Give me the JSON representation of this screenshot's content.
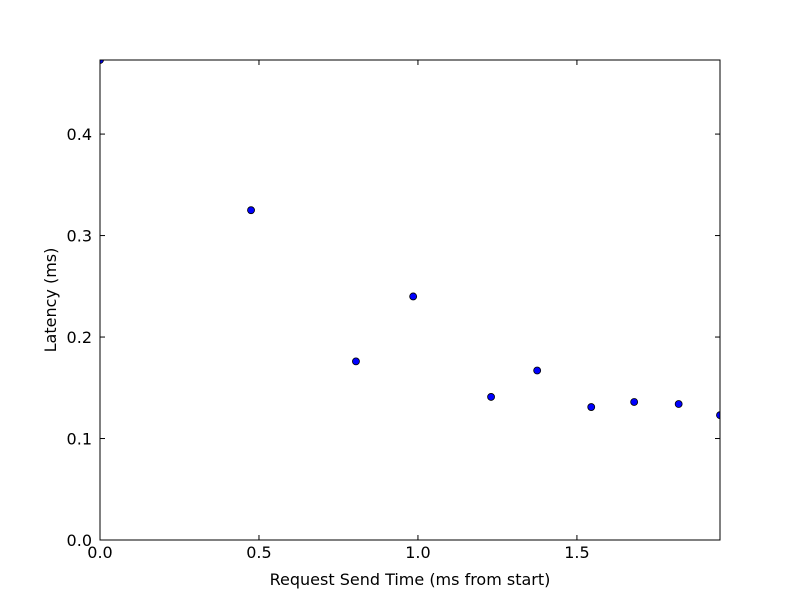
{
  "chart_data": {
    "type": "scatter",
    "title": "",
    "xlabel": "Request Send Time (ms from start)",
    "ylabel": "Latency (ms)",
    "xlim": [
      0.0,
      1.95
    ],
    "ylim": [
      0.0,
      0.473
    ],
    "xticks": [
      0.0,
      0.5,
      1.0,
      1.5
    ],
    "xtick_labels": [
      "0.0",
      "0.5",
      "1.0",
      "1.5"
    ],
    "yticks": [
      0.0,
      0.1,
      0.2,
      0.3,
      0.4
    ],
    "ytick_labels": [
      "0.0",
      "0.1",
      "0.2",
      "0.3",
      "0.4"
    ],
    "grid": false,
    "marker_color": "#0000ff",
    "series": [
      {
        "x": [
          0.0,
          0.475,
          0.805,
          0.985,
          1.23,
          1.375,
          1.545,
          1.68,
          1.82,
          1.95
        ],
        "y": [
          0.473,
          0.325,
          0.176,
          0.24,
          0.141,
          0.167,
          0.131,
          0.136,
          0.134,
          0.123
        ]
      }
    ]
  }
}
